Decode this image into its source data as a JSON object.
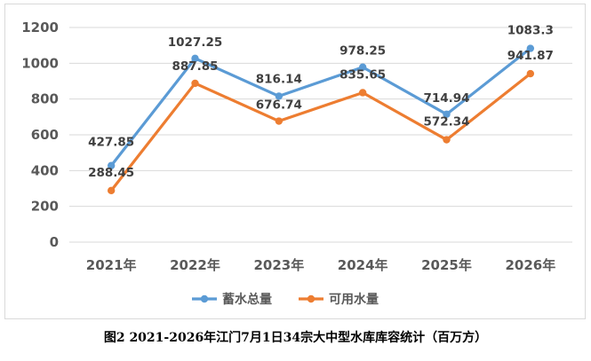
{
  "chart_data": {
    "type": "line",
    "categories": [
      "2021年",
      "2022年",
      "2023年",
      "2024年",
      "2025年",
      "2026年"
    ],
    "series": [
      {
        "name": "蓄水总量",
        "color": "#5b9bd5",
        "values": [
          427.85,
          1027.25,
          816.14,
          978.25,
          714.94,
          1083.3
        ],
        "labels": [
          "427.85",
          "1027.25",
          "816.14",
          "978.25",
          "714.94",
          "1083.3"
        ]
      },
      {
        "name": "可用水量",
        "color": "#ed7d31",
        "values": [
          288.45,
          887.85,
          676.74,
          835.65,
          572.34,
          941.87
        ],
        "labels": [
          "288.45",
          "887.85",
          "676.74",
          "835.65",
          "572.34",
          "941.87"
        ]
      }
    ],
    "ylim": [
      0,
      1200
    ],
    "yticks": [
      "0",
      "200",
      "400",
      "600",
      "800",
      "1000",
      "1200"
    ],
    "grid": true,
    "legend_position": "bottom"
  },
  "caption": "图2 2021-2026年江门7月1日34宗大中型水库库容统计（百万方）"
}
